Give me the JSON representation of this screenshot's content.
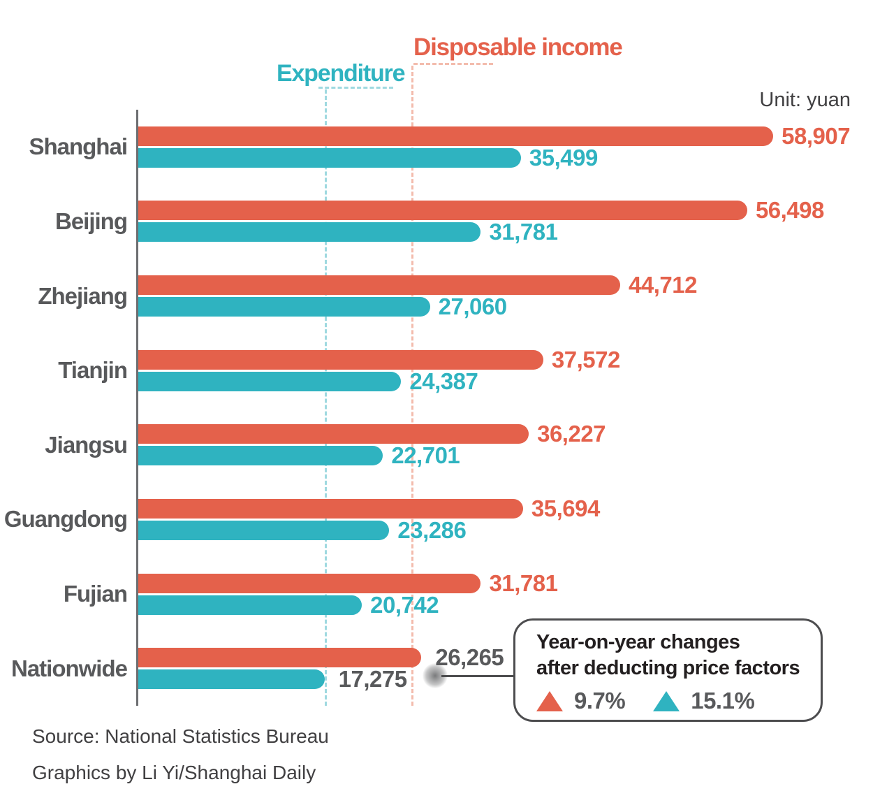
{
  "header": {
    "income_series_label": "Disposable income",
    "expenditure_series_label": "Expenditure",
    "unit_label": "Unit: yuan"
  },
  "legend": {
    "note_line1": "Year-on-year changes",
    "note_line2": "after deducting price factors",
    "income_change": "9.7%",
    "expenditure_change": "15.1%"
  },
  "source": {
    "source_line": "Source: National Statistics Bureau",
    "credit_line": "Graphics by Li Yi/Shanghai Daily"
  },
  "colors": {
    "income": "#E4614B",
    "expenditure": "#2FB3C0",
    "income_light": "#F3BCAD",
    "expenditure_light": "#9FD9E0",
    "muted_text": "#58595B",
    "axis": "#6D6E71",
    "legend_border": "#4D4D4F",
    "text_dark": "#414042",
    "text_black": "#231F20"
  },
  "chart_data": {
    "type": "bar",
    "orientation": "horizontal",
    "unit": "yuan",
    "categories": [
      "Shanghai",
      "Beijing",
      "Zhejiang",
      "Tianjin",
      "Jiangsu",
      "Guangdong",
      "Fujian",
      "Nationwide"
    ],
    "series": [
      {
        "name": "Disposable income",
        "color": "#E4614B",
        "values": [
          58907,
          56498,
          44712,
          37572,
          36227,
          35694,
          31781,
          26265
        ]
      },
      {
        "name": "Expenditure",
        "color": "#2FB3C0",
        "values": [
          35499,
          31781,
          27060,
          24387,
          22701,
          23286,
          20742,
          17275
        ]
      }
    ],
    "xlim": [
      0,
      60000
    ],
    "grid": false,
    "legend_position": "bottom-right",
    "muted_category": "Nationwide",
    "annotations": {
      "note": "Year-on-year changes after deducting price factors",
      "yoy_income": "9.7%",
      "yoy_expenditure": "15.1%",
      "unit": "Unit: yuan"
    },
    "reference_lines": [
      {
        "series": "Expenditure",
        "style": "dashed",
        "marks": "nationwide expenditure level"
      },
      {
        "series": "Disposable income",
        "style": "dashed",
        "marks": "nationwide disposable income level"
      }
    ]
  }
}
